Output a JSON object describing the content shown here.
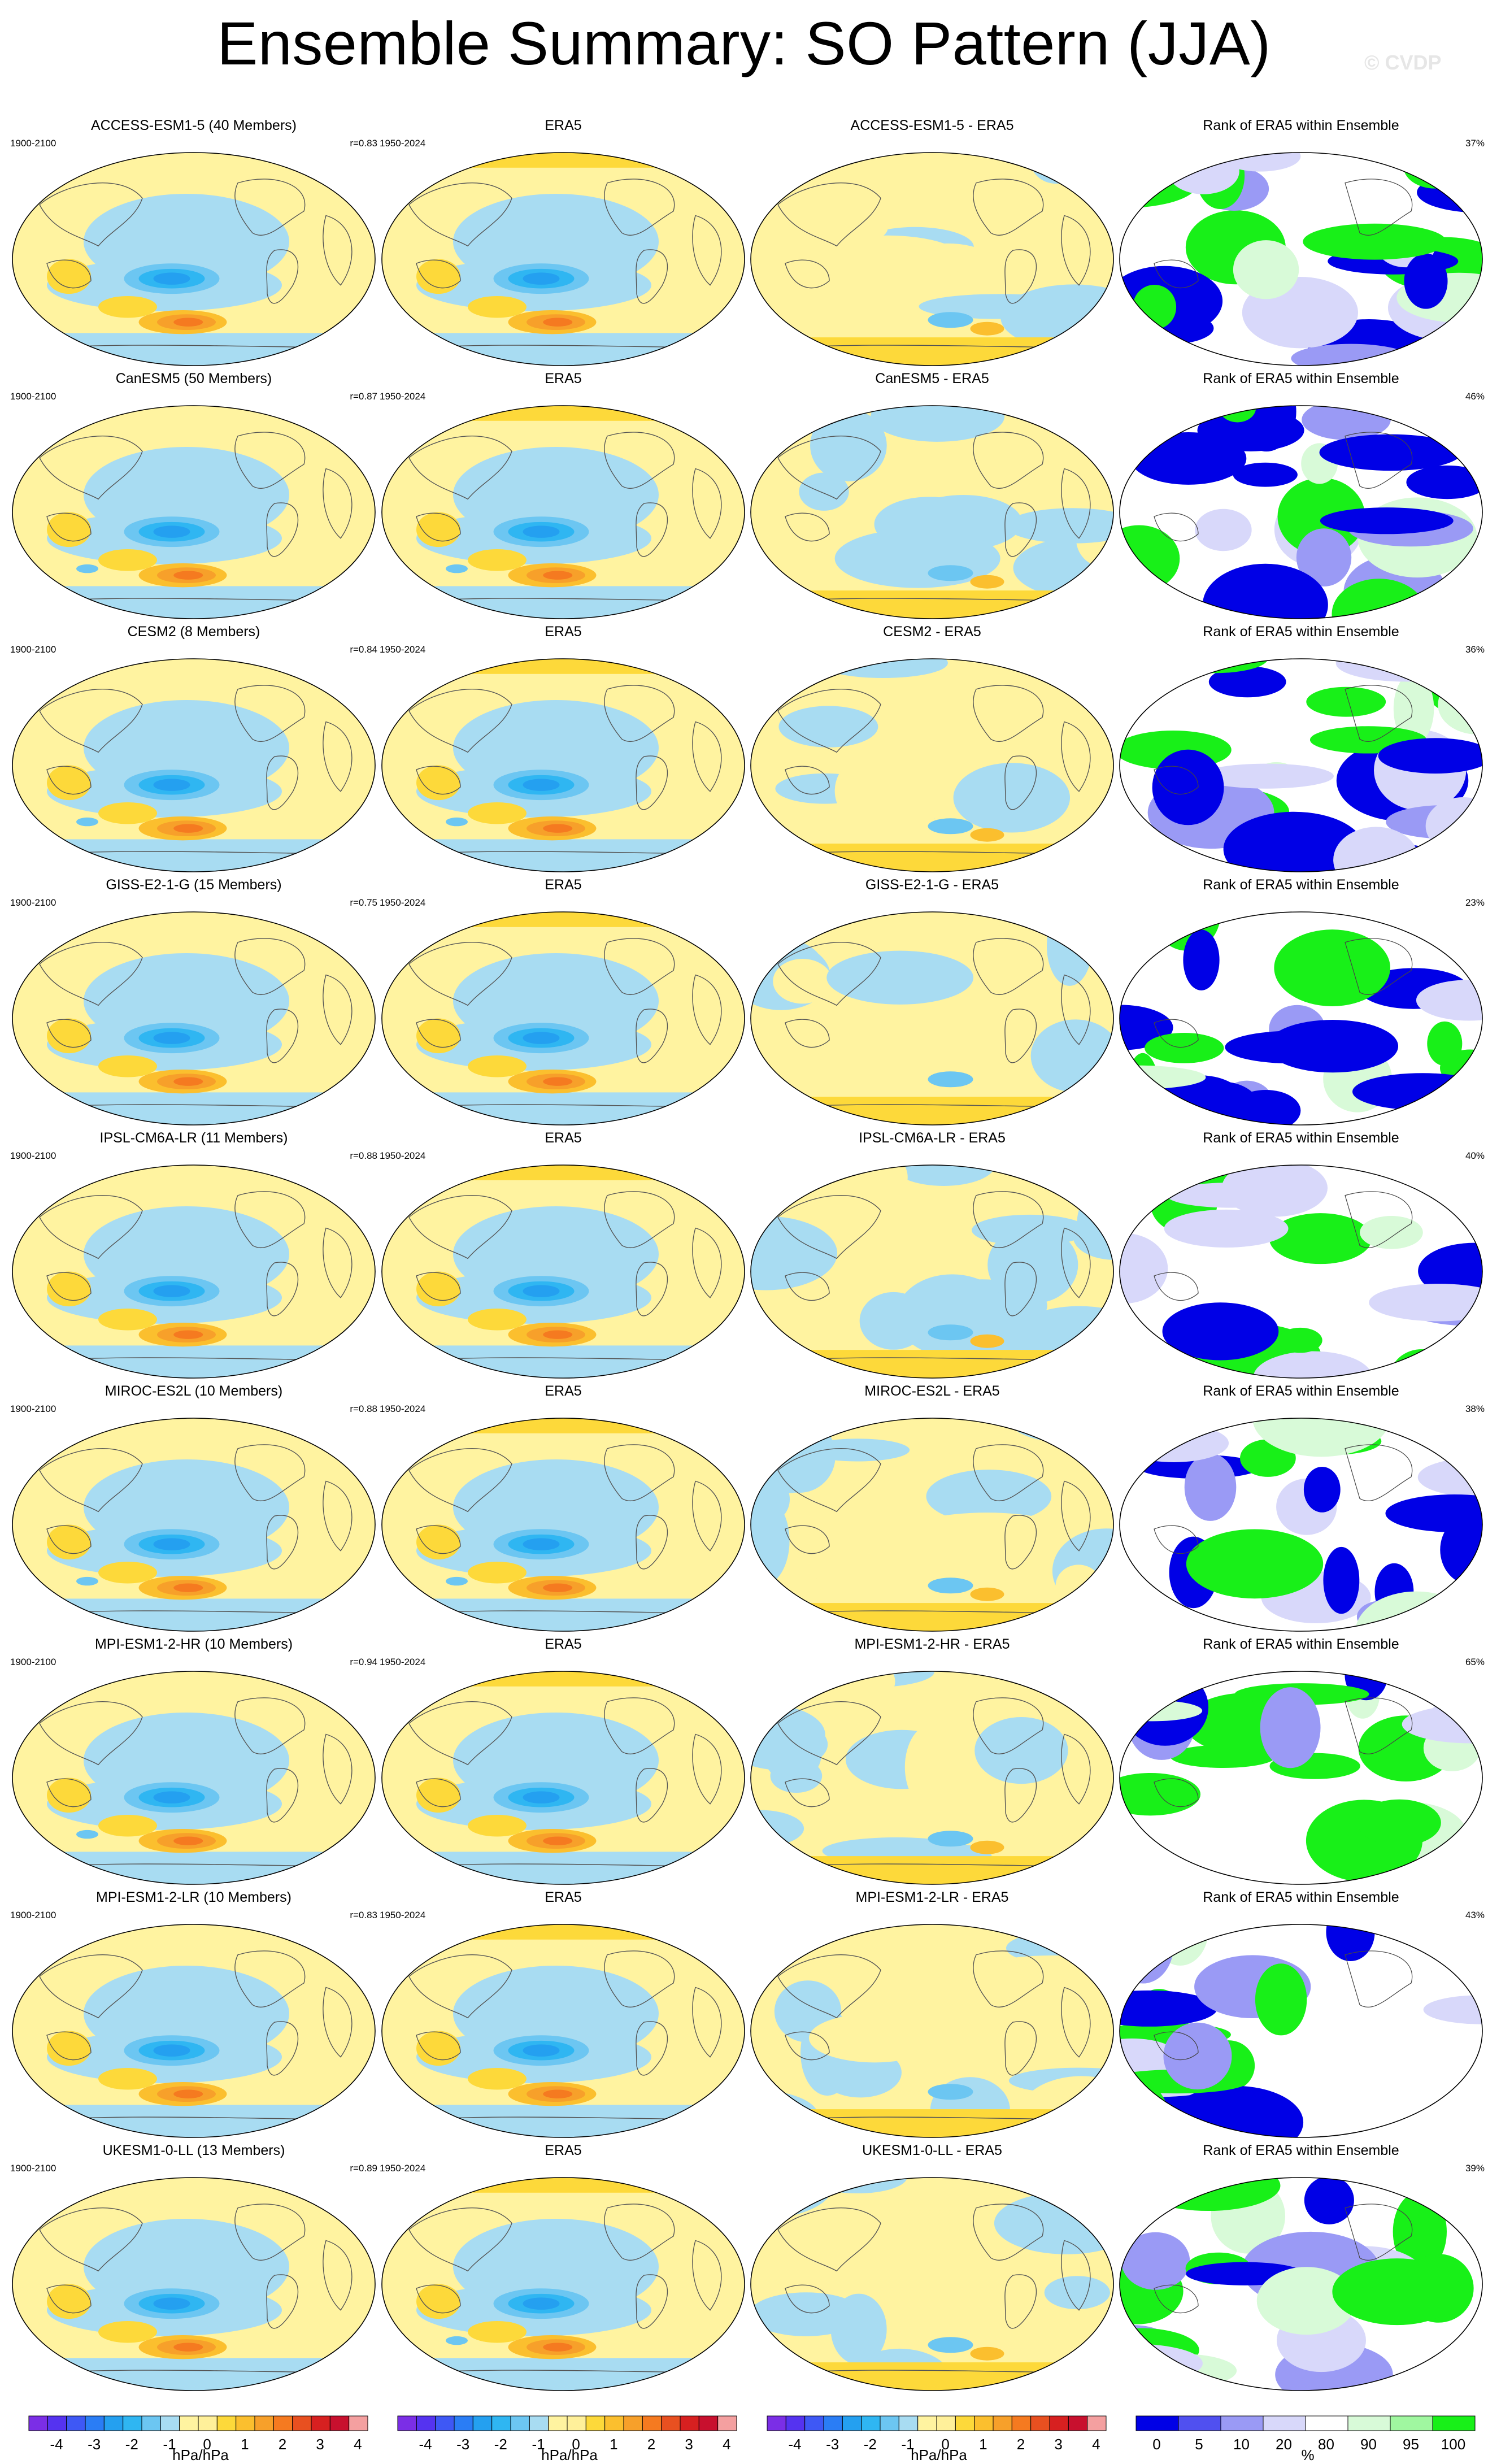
{
  "title": "Ensemble Summary: SO Pattern (JJA)",
  "watermark": "© CVDP",
  "colors": {
    "neg4": "#7b2ee6",
    "neg35": "#5533f0",
    "neg3": "#3e58f5",
    "neg25": "#2a7df5",
    "neg2": "#24a0f0",
    "neg15": "#2fb6f2",
    "neg1": "#6cc6f2",
    "neg05": "#a8dcf2",
    "zero": "#fff3a0",
    "pos05": "#fff09a",
    "pos1": "#fdd93a",
    "pos15": "#fbbf2e",
    "pos2": "#f7a02a",
    "pos25": "#f57a20",
    "pos3": "#e85020",
    "pos35": "#d72020",
    "pos4": "#c8102e",
    "pos45": "#f4a0a0",
    "rank_dark": "#0000e6",
    "rank_mid": "#5050f0",
    "rank_light": "#9a9af5",
    "rank_pale": "#d8d8fa",
    "rank_white": "#ffffff",
    "rank_palegreen": "#d8fad8",
    "rank_lightgreen": "#a0f7a0",
    "rank_green": "#18f018"
  },
  "rows": [
    {
      "model": "ACCESS-ESM1-5 (40 Members)",
      "period": "1900-2100",
      "r": "r=0.83",
      "era_period": "1950-2024",
      "era_title": "ERA5",
      "diff_title": "ACCESS-ESM1-5 - ERA5",
      "rank_title": "Rank of ERA5 within Ensemble",
      "rank_pct": "37%"
    },
    {
      "model": "CanESM5 (50 Members)",
      "period": "1900-2100",
      "r": "r=0.87",
      "era_period": "1950-2024",
      "era_title": "ERA5",
      "diff_title": "CanESM5 - ERA5",
      "rank_title": "Rank of ERA5 within Ensemble",
      "rank_pct": "46%"
    },
    {
      "model": "CESM2 (8 Members)",
      "period": "1900-2100",
      "r": "r=0.84",
      "era_period": "1950-2024",
      "era_title": "ERA5",
      "diff_title": "CESM2 - ERA5",
      "rank_title": "Rank of ERA5 within Ensemble",
      "rank_pct": "36%"
    },
    {
      "model": "GISS-E2-1-G (15 Members)",
      "period": "1900-2100",
      "r": "r=0.75",
      "era_period": "1950-2024",
      "era_title": "ERA5",
      "diff_title": "GISS-E2-1-G - ERA5",
      "rank_title": "Rank of ERA5 within Ensemble",
      "rank_pct": "23%"
    },
    {
      "model": "IPSL-CM6A-LR (11 Members)",
      "period": "1900-2100",
      "r": "r=0.88",
      "era_period": "1950-2024",
      "era_title": "ERA5",
      "diff_title": "IPSL-CM6A-LR - ERA5",
      "rank_title": "Rank of ERA5 within Ensemble",
      "rank_pct": "40%"
    },
    {
      "model": "MIROC-ES2L (10 Members)",
      "period": "1900-2100",
      "r": "r=0.88",
      "era_period": "1950-2024",
      "era_title": "ERA5",
      "diff_title": "MIROC-ES2L - ERA5",
      "rank_title": "Rank of ERA5 within Ensemble",
      "rank_pct": "38%"
    },
    {
      "model": "MPI-ESM1-2-HR (10 Members)",
      "period": "1900-2100",
      "r": "r=0.94",
      "era_period": "1950-2024",
      "era_title": "ERA5",
      "diff_title": "MPI-ESM1-2-HR - ERA5",
      "rank_title": "Rank of ERA5 within Ensemble",
      "rank_pct": "65%"
    },
    {
      "model": "MPI-ESM1-2-LR (10 Members)",
      "period": "1900-2100",
      "r": "r=0.83",
      "era_period": "1950-2024",
      "era_title": "ERA5",
      "diff_title": "MPI-ESM1-2-LR - ERA5",
      "rank_title": "Rank of ERA5 within Ensemble",
      "rank_pct": "43%"
    },
    {
      "model": "UKESM1-0-LL (13 Members)",
      "period": "1900-2100",
      "r": "r=0.89",
      "era_period": "1950-2024",
      "era_title": "ERA5",
      "diff_title": "UKESM1-0-LL - ERA5",
      "rank_title": "Rank of ERA5 within Ensemble",
      "rank_pct": "39%"
    }
  ],
  "legend_pattern": {
    "ticks": [
      "-4",
      "-3",
      "-2",
      "-1",
      "0",
      "1",
      "2",
      "3",
      "4"
    ],
    "unit": "hPa/hPa"
  },
  "legend_rank": {
    "ticks": [
      "0",
      "5",
      "10",
      "20",
      "80",
      "90",
      "95",
      "100"
    ],
    "unit": "%"
  }
}
